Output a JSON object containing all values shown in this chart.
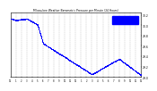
{
  "title": "Milwaukee Weather Barometric Pressure per Minute (24 Hours)",
  "bg_color": "#ffffff",
  "plot_bg": "#ffffff",
  "dot_color": "#0000ff",
  "legend_color": "#0000ff",
  "grid_color": "#888888",
  "ylim": [
    29.0,
    30.25
  ],
  "xlim": [
    0,
    1440
  ],
  "y_ticks": [
    29.0,
    29.2,
    29.4,
    29.6,
    29.8,
    30.0,
    30.2
  ],
  "x_ticks": [
    0,
    60,
    120,
    180,
    240,
    300,
    360,
    420,
    480,
    540,
    600,
    660,
    720,
    780,
    840,
    900,
    960,
    1020,
    1080,
    1140,
    1200,
    1260,
    1320,
    1380,
    1440
  ],
  "x_tick_labels": [
    "12",
    "1",
    "2",
    "3",
    "4",
    "5",
    "6",
    "7",
    "8",
    "9",
    "10",
    "11",
    "12",
    "1",
    "2",
    "3",
    "4",
    "5",
    "6",
    "7",
    "8",
    "9",
    "10",
    "11",
    "12"
  ]
}
